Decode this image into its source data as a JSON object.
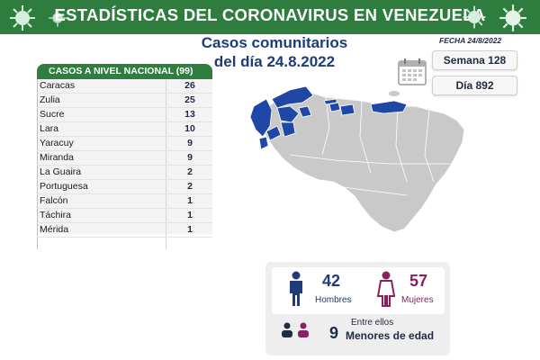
{
  "header": {
    "title": "ESTADÍSTICAS DEL CORONAVIRUS EN VENEZUELA",
    "subtitle_line1": "Casos comunitarios",
    "subtitle_line2": "del día 24.8.2022",
    "fecha": "FECHA 24/8/2022",
    "accent": "#2e7d3e"
  },
  "stats": {
    "semana": "Semana 128",
    "dia": "Día 892"
  },
  "table": {
    "header": "CASOS A NIVEL NACIONAL",
    "total": "(99)",
    "rows": [
      {
        "state": "Caracas",
        "value": "26"
      },
      {
        "state": "Zulia",
        "value": "25"
      },
      {
        "state": "Sucre",
        "value": "13"
      },
      {
        "state": "Lara",
        "value": "10"
      },
      {
        "state": "Yaracuy",
        "value": "9"
      },
      {
        "state": "Miranda",
        "value": "9"
      },
      {
        "state": "La Guaira",
        "value": "2"
      },
      {
        "state": "Portuguesa",
        "value": "2"
      },
      {
        "state": "Falcón",
        "value": "1"
      },
      {
        "state": "Táchira",
        "value": "1"
      },
      {
        "state": "Mérida",
        "value": "1"
      }
    ]
  },
  "gender": {
    "men_count": "42",
    "men_label": "Hombres",
    "women_count": "57",
    "women_label": "Mujeres",
    "minors_prefix": "Entre ellos",
    "minors_count": "9",
    "minors_label": "Menores de edad",
    "men_color": "#1f3b7a",
    "women_color": "#8b1f5f"
  },
  "map": {
    "highlight_color": "#1f47a6",
    "base_color": "#c8c8c8"
  }
}
